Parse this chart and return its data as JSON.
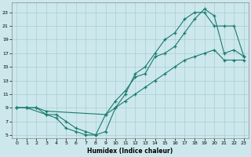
{
  "xlabel": "Humidex (Indice chaleur)",
  "ylabel": "",
  "bg_color": "#cce8ec",
  "grid_color": "#aacdd4",
  "line_color": "#1a7a6e",
  "xlim": [
    -0.5,
    23.5
  ],
  "ylim": [
    4.5,
    24.5
  ],
  "xticks": [
    0,
    1,
    2,
    3,
    4,
    5,
    6,
    7,
    8,
    9,
    10,
    11,
    12,
    13,
    14,
    15,
    16,
    17,
    18,
    19,
    20,
    21,
    22,
    23
  ],
  "yticks": [
    5,
    7,
    9,
    11,
    13,
    15,
    17,
    19,
    21,
    23
  ],
  "line1_x": [
    0,
    1,
    3,
    4,
    5,
    6,
    7,
    8,
    9,
    10,
    11,
    12,
    13,
    14,
    15,
    16,
    17,
    18,
    19,
    20,
    21,
    22,
    23
  ],
  "line1_y": [
    9,
    9,
    8,
    7.5,
    6,
    5.5,
    5,
    5,
    8,
    10,
    11.5,
    13.5,
    14,
    16.5,
    17,
    18,
    20,
    22,
    23.5,
    22.5,
    17,
    17.5,
    16.5
  ],
  "line2_x": [
    0,
    1,
    2,
    3,
    4,
    5,
    6,
    7,
    8,
    9,
    10,
    11,
    12,
    13,
    14,
    15,
    16,
    17,
    18,
    19,
    20,
    21,
    22,
    23
  ],
  "line2_y": [
    9,
    9,
    9,
    8,
    8,
    7,
    6,
    5.5,
    5,
    5.5,
    9,
    11,
    14,
    15,
    17,
    19,
    20,
    22,
    23,
    23,
    21,
    21,
    21,
    16.5
  ],
  "line3_x": [
    0,
    1,
    2,
    3,
    9,
    10,
    11,
    12,
    13,
    14,
    15,
    16,
    17,
    18,
    19,
    20,
    21,
    22,
    23
  ],
  "line3_y": [
    9,
    9,
    9,
    8.5,
    8,
    9,
    10,
    11,
    12,
    13,
    14,
    15,
    16,
    16.5,
    17,
    17.5,
    16,
    16,
    16
  ]
}
